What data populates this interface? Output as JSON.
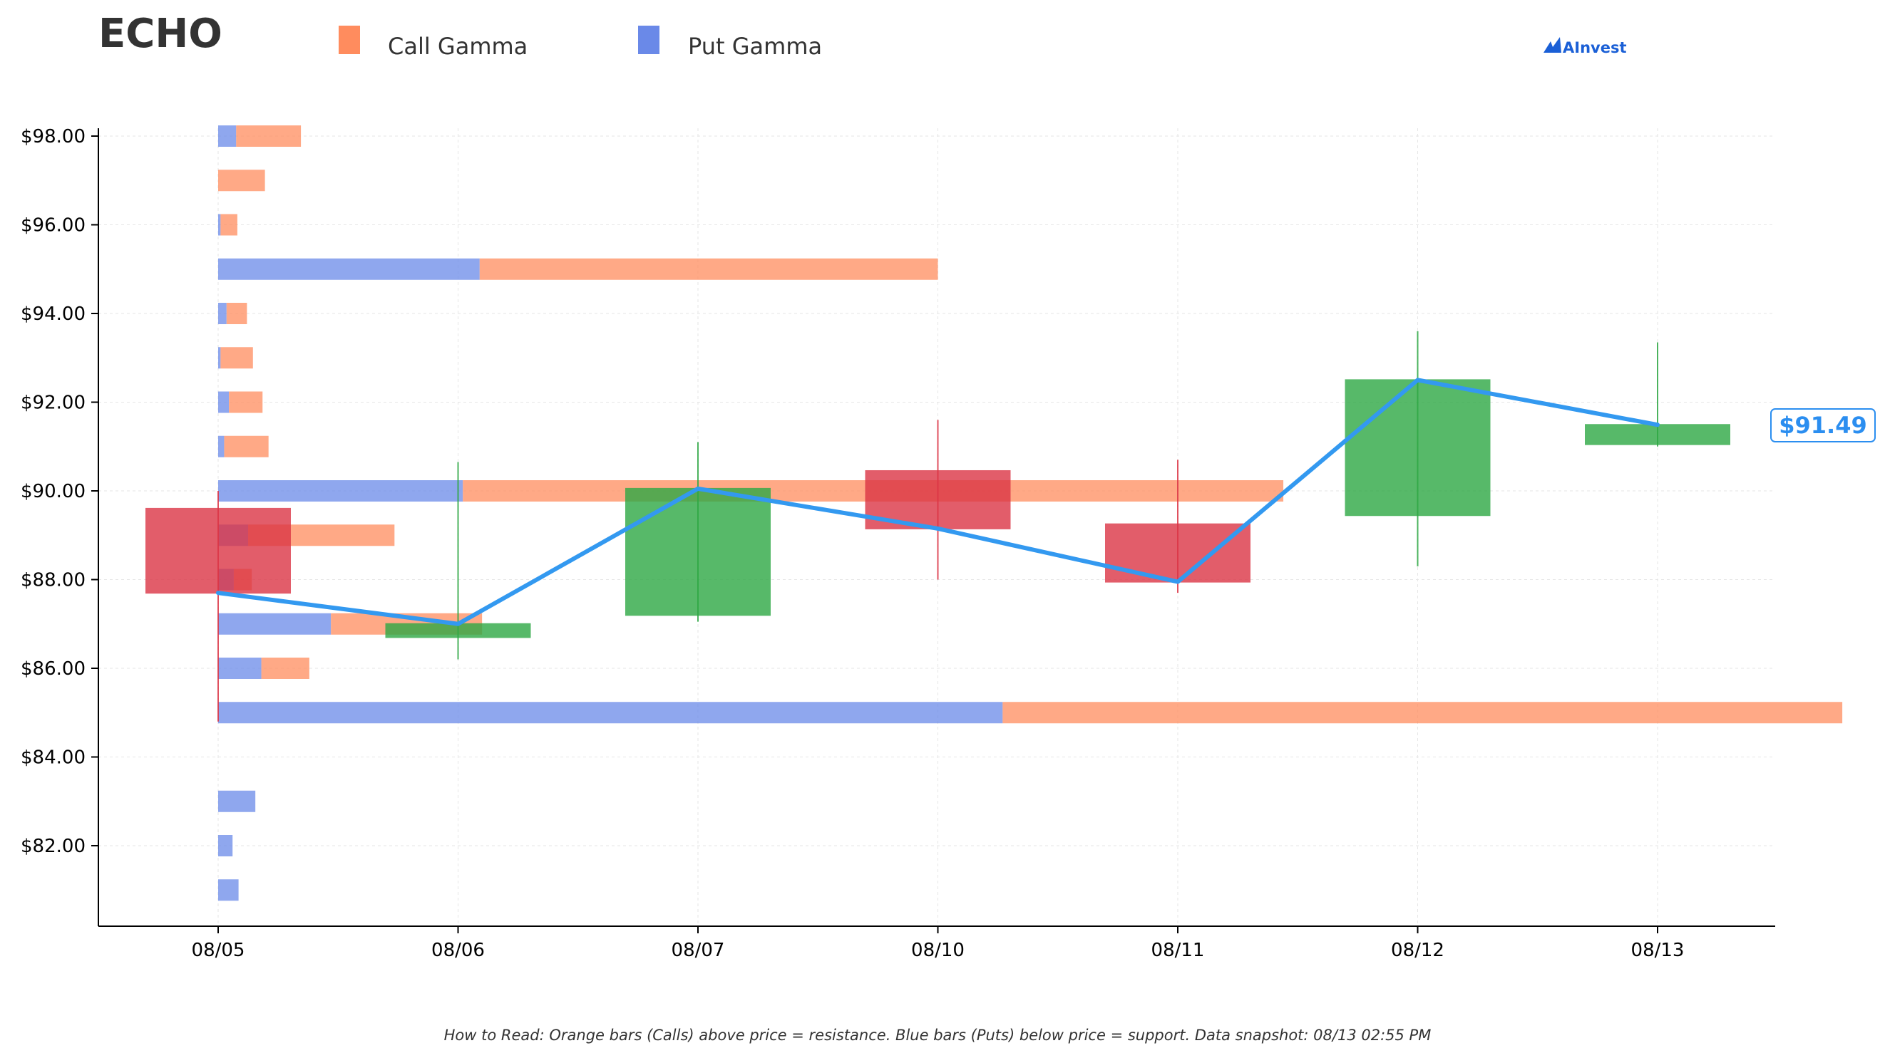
{
  "title": "ECHO",
  "legend": [
    {
      "label": "Call Gamma",
      "color": "#FF8C5E"
    },
    {
      "label": "Put Gamma",
      "color": "#6A89E8"
    }
  ],
  "logo": "AInvest",
  "footnote": "How to Read: Orange bars (Calls) above price = resistance. Blue bars (Puts) below price = support. Data snapshot: 08/13 02:55 PM",
  "current_price_label": "$91.49",
  "chart_data": {
    "type": "bar",
    "categories": [
      "08/05",
      "08/06",
      "08/07",
      "08/10",
      "08/11",
      "08/12",
      "08/13"
    ],
    "ylim": [
      80.2,
      98.2
    ],
    "yticks": [
      82,
      84,
      86,
      88,
      90,
      92,
      94,
      96,
      98
    ],
    "ytick_labels": [
      "$82.00",
      "$84.00",
      "$86.00",
      "$88.00",
      "$90.00",
      "$92.00",
      "$94.00",
      "$96.00",
      "$98.00"
    ],
    "grid": true,
    "legend_position": "top-left",
    "candles": [
      {
        "date": "08/05",
        "open": 89.6,
        "high": 90.0,
        "low": 84.8,
        "close": 87.7
      },
      {
        "date": "08/06",
        "open": 86.7,
        "high": 90.65,
        "low": 86.2,
        "close": 87.0
      },
      {
        "date": "08/07",
        "open": 87.2,
        "high": 91.1,
        "low": 87.05,
        "close": 90.05
      },
      {
        "date": "08/10",
        "open": 90.45,
        "high": 91.6,
        "low": 88.0,
        "close": 89.15
      },
      {
        "date": "08/11",
        "open": 89.25,
        "high": 90.7,
        "low": 87.7,
        "close": 87.95
      },
      {
        "date": "08/12",
        "open": 89.45,
        "high": 93.6,
        "low": 88.3,
        "close": 92.5
      },
      {
        "date": "08/13",
        "open": 91.05,
        "high": 93.35,
        "low": 91.0,
        "close": 91.49
      }
    ],
    "close_line": {
      "name": "",
      "color": "#3399F0",
      "values": [
        87.7,
        87.0,
        90.05,
        89.15,
        87.95,
        92.5,
        91.49
      ]
    },
    "gamma_bars": [
      {
        "strike": 98,
        "put": 0.075,
        "call": 0.27
      },
      {
        "strike": 97,
        "put": 0.0,
        "call": 0.195
      },
      {
        "strike": 96,
        "put": 0.01,
        "call": 0.07
      },
      {
        "strike": 95,
        "put": 1.09,
        "call": 1.91
      },
      {
        "strike": 94,
        "put": 0.035,
        "call": 0.085
      },
      {
        "strike": 93,
        "put": 0.01,
        "call": 0.135
      },
      {
        "strike": 92,
        "put": 0.045,
        "call": 0.14
      },
      {
        "strike": 91,
        "put": 0.025,
        "call": 0.185
      },
      {
        "strike": 90,
        "put": 1.02,
        "call": 3.42
      },
      {
        "strike": 89,
        "put": 0.125,
        "call": 0.61
      },
      {
        "strike": 88,
        "put": 0.065,
        "call": 0.075
      },
      {
        "strike": 87,
        "put": 0.47,
        "call": 0.63
      },
      {
        "strike": 86,
        "put": 0.18,
        "call": 0.2
      },
      {
        "strike": 85,
        "put": 3.27,
        "call": 3.5
      },
      {
        "strike": 83,
        "put": 0.155,
        "call": 0.0
      },
      {
        "strike": 82,
        "put": 0.06,
        "call": 0.0
      },
      {
        "strike": 81,
        "put": 0.085,
        "call": 0.0
      }
    ],
    "colors": {
      "up": "#2EA844",
      "down": "#DC3545",
      "call": "#FF8C5E",
      "put": "#6A89E8",
      "line": "#3399F0"
    }
  }
}
